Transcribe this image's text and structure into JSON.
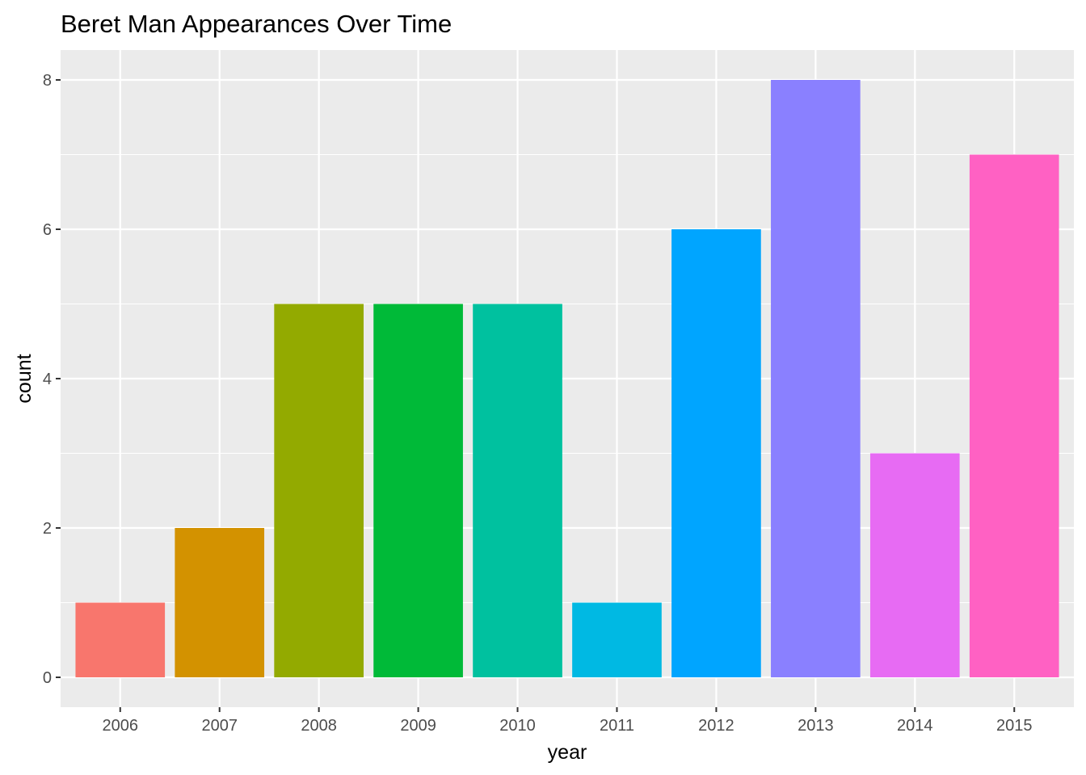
{
  "chart_data": {
    "type": "bar",
    "title": "Beret Man Appearances Over Time",
    "xlabel": "year",
    "ylabel": "count",
    "categories": [
      "2006",
      "2007",
      "2008",
      "2009",
      "2010",
      "2011",
      "2012",
      "2013",
      "2014",
      "2015"
    ],
    "values": [
      1,
      2,
      5,
      5,
      5,
      1,
      6,
      8,
      3,
      7
    ],
    "colors": [
      "#F8766D",
      "#D39200",
      "#93AA00",
      "#00BA38",
      "#00C19F",
      "#00B9E3",
      "#00A5FF",
      "#8A80FF",
      "#E76BF3",
      "#FF61C3"
    ],
    "ylim": [
      -0.4,
      8.4
    ],
    "yticks": [
      0,
      2,
      4,
      6,
      8
    ],
    "grid": true,
    "legend": "none",
    "panel_background": "#EBEBEB"
  }
}
